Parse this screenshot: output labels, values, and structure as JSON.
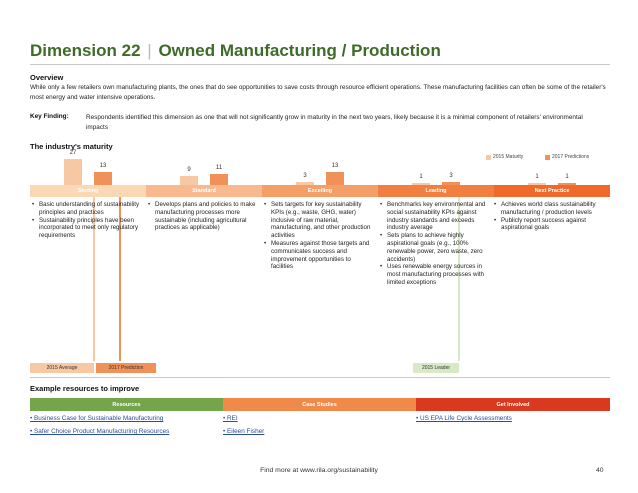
{
  "title": {
    "dimension": "Dimension 22",
    "separator": "|",
    "name": "Owned Manufacturing / Production"
  },
  "overview": {
    "heading": "Overview",
    "text": "While only a few retailers own manufacturing plants, the ones that do see opportunities to save costs through resource efficient operations. These manufacturing facilities can often be some of the retailer's most energy and water intensive operations."
  },
  "key_finding": {
    "label": "Key Finding:",
    "text": "Respondents identified this dimension as one that will not significantly grow in maturity in the next two years, likely because it is a minimal component of retailers' environmental impacts"
  },
  "maturity": {
    "heading": "The industry's maturity",
    "legend": {
      "current": "2015 Maturity",
      "predicted": "2017 Predictions"
    },
    "colors": {
      "current": "#f6c9a4",
      "predicted": "#f0915a"
    },
    "stages": [
      {
        "label": "Starting",
        "color": "#fbd8b5",
        "current": 27,
        "predicted": 13,
        "items": [
          "Basic understanding of sustainability principles and practices",
          "Sustainability principles have been incorporated to meet only regulatory requirements"
        ]
      },
      {
        "label": "Standard",
        "color": "#f8b98e",
        "current": 9,
        "predicted": 11,
        "items": [
          "Develops plans and policies to make manufacturing processes more sustainable (including agricultural practices as applicable)"
        ]
      },
      {
        "label": "Excelling",
        "color": "#f59f68",
        "current": 3,
        "predicted": 13,
        "items": [
          "Sets targets for key sustainability KPIs (e.g., waste, GHG, water) inclusive of raw material, manufacturing, and other production activities",
          "Measures against those targets and communicates success and improvement opportunities to facilities"
        ]
      },
      {
        "label": "Leading",
        "color": "#f27f3f",
        "current": 1,
        "predicted": 3,
        "items": [
          "Benchmarks key environmental and social sustainability KPIs against industry standards and exceeds industry average",
          "Sets plans to achieve highly aspirational goals (e.g., 100% renewable power, zero waste, zero accidents)",
          "Uses renewable energy sources in most manufacturing processes with limited exceptions"
        ]
      },
      {
        "label": "Next Practice",
        "color": "#ef6a2a",
        "current": 1,
        "predicted": 1,
        "items": [
          "Achieves world class sustainability manufacturing / production levels",
          "Publicly report success against aspirational goals"
        ]
      }
    ],
    "markers": {
      "average": "2015 Average",
      "prediction": "2017 Prediction",
      "leader": "2015 Leader"
    }
  },
  "resources": {
    "heading": "Example resources to improve",
    "categories": [
      {
        "label": "Resources",
        "color": "#74a54a",
        "links": [
          "• Business Case for Sustainable Manufacturing",
          "• Safer Choice Product Manufacturing Resources"
        ]
      },
      {
        "label": "Case Studies",
        "color": "#f08a4b",
        "links": [
          "• REI",
          "• Eileen Fisher"
        ]
      },
      {
        "label": "Get Involved",
        "color": "#d9391f",
        "links": [
          "• US EPA Life Cycle Assessments"
        ]
      }
    ]
  },
  "footer": {
    "text": "Find more at www.rila.org/sustainability",
    "page": "40"
  }
}
